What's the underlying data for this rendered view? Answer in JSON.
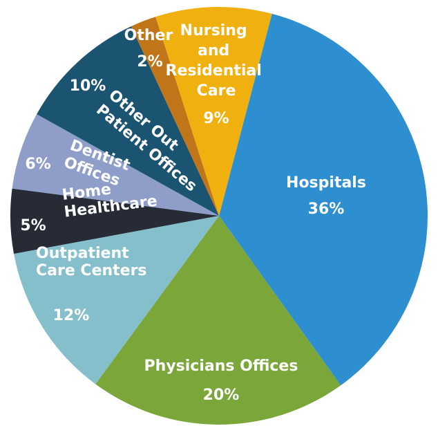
{
  "chart_data": {
    "type": "pie",
    "categories": [
      "Hospitals",
      "Physicians Offices",
      "Outpatient Care Centers",
      "Home Healthcare",
      "Dentist Offices",
      "Other Out Patient Offices",
      "Other",
      "Nursing and Residential Care"
    ],
    "values": [
      36,
      20,
      12,
      5,
      6,
      10,
      2,
      9
    ],
    "value_labels": [
      "36%",
      "20%",
      "12%",
      "5%",
      "6%",
      "10%",
      "2%",
      "9%"
    ],
    "colors": [
      "#2e8fd0",
      "#7aa63a",
      "#85bfcc",
      "#262b36",
      "#8e9ec8",
      "#1b5470",
      "#c07518",
      "#f0b110"
    ]
  }
}
